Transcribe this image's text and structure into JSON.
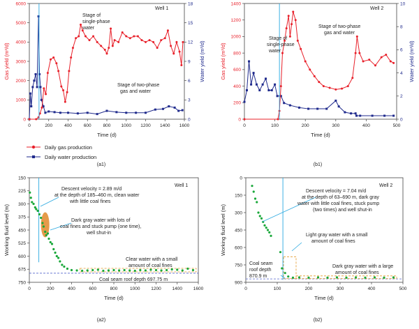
{
  "colors": {
    "gas": "#e8202a",
    "water": "#1f2a8c",
    "level": "#1aa83a",
    "annotation_line": "#29a8e0",
    "box": "#e39a2a",
    "roof_line": "#5566cc",
    "slug": "#e08a2a"
  },
  "legend": {
    "gas": "Daily gas production",
    "water": "Daily water production"
  },
  "chart_data": [
    {
      "id": "a1",
      "type": "line",
      "panel_label": "Well 1",
      "caption": "(a1)",
      "xlabel": "Time (d)",
      "ylabel_left": "Gas yield (m³/d)",
      "ylabel_right": "Water yield (m³/d)",
      "xlim": [
        0,
        1600
      ],
      "xticks": [
        0,
        200,
        400,
        600,
        800,
        1000,
        1200,
        1400,
        1600
      ],
      "ylim_left": [
        0,
        6000
      ],
      "yticks_left": [
        0,
        1000,
        2000,
        3000,
        4000,
        5000,
        6000
      ],
      "ylim_right": [
        0,
        18
      ],
      "yticks_right": [
        0,
        3,
        6,
        9,
        12,
        15,
        18
      ],
      "series": [
        {
          "name": "Daily gas production",
          "axis": "left",
          "points": [
            [
              0,
              0
            ],
            [
              70,
              0
            ],
            [
              95,
              100
            ],
            [
              110,
              300
            ],
            [
              130,
              600
            ],
            [
              150,
              1600
            ],
            [
              170,
              1300
            ],
            [
              190,
              2400
            ],
            [
              220,
              3100
            ],
            [
              250,
              3200
            ],
            [
              280,
              2900
            ],
            [
              300,
              2500
            ],
            [
              330,
              1700
            ],
            [
              350,
              1500
            ],
            [
              370,
              900
            ],
            [
              390,
              1400
            ],
            [
              410,
              2500
            ],
            [
              430,
              3200
            ],
            [
              450,
              3700
            ],
            [
              480,
              4200
            ],
            [
              510,
              4300
            ],
            [
              530,
              4900
            ],
            [
              550,
              4600
            ],
            [
              580,
              4300
            ],
            [
              620,
              4100
            ],
            [
              660,
              4300
            ],
            [
              700,
              4000
            ],
            [
              740,
              3800
            ],
            [
              780,
              3600
            ],
            [
              800,
              3400
            ],
            [
              820,
              3700
            ],
            [
              840,
              4700
            ],
            [
              860,
              3800
            ],
            [
              880,
              4100
            ],
            [
              920,
              4000
            ],
            [
              960,
              4500
            ],
            [
              1000,
              4300
            ],
            [
              1040,
              4200
            ],
            [
              1080,
              4300
            ],
            [
              1120,
              4300
            ],
            [
              1160,
              4100
            ],
            [
              1200,
              4000
            ],
            [
              1240,
              4100
            ],
            [
              1280,
              4000
            ],
            [
              1320,
              3700
            ],
            [
              1360,
              4100
            ],
            [
              1400,
              4200
            ],
            [
              1430,
              4600
            ],
            [
              1460,
              3800
            ],
            [
              1490,
              3400
            ],
            [
              1520,
              4000
            ],
            [
              1550,
              3500
            ],
            [
              1570,
              2800
            ],
            [
              1585,
              4000
            ]
          ]
        },
        {
          "name": "Daily water production",
          "axis": "right",
          "points": [
            [
              0,
              0
            ],
            [
              10,
              4
            ],
            [
              20,
              2
            ],
            [
              35,
              5
            ],
            [
              50,
              6
            ],
            [
              65,
              7
            ],
            [
              80,
              5
            ],
            [
              95,
              16
            ],
            [
              105,
              7
            ],
            [
              115,
              5
            ],
            [
              125,
              3
            ],
            [
              145,
              2
            ],
            [
              165,
              1
            ],
            [
              200,
              1.2
            ],
            [
              260,
              1.1
            ],
            [
              320,
              1
            ],
            [
              400,
              1
            ],
            [
              500,
              0.9
            ],
            [
              600,
              1
            ],
            [
              700,
              0.8
            ],
            [
              800,
              1.3
            ],
            [
              900,
              1.1
            ],
            [
              1000,
              1
            ],
            [
              1100,
              1
            ],
            [
              1200,
              1
            ],
            [
              1300,
              1.5
            ],
            [
              1380,
              1.6
            ],
            [
              1440,
              2
            ],
            [
              1500,
              1.8
            ],
            [
              1540,
              1.3
            ],
            [
              1580,
              1.4
            ]
          ]
        }
      ],
      "annotations": [
        "Stage of single-phase water",
        "Stage of two-phase gas and water"
      ]
    },
    {
      "id": "b1",
      "type": "line",
      "panel_label": "Well 2",
      "caption": "(b1)",
      "xlabel": "Time (d)",
      "ylabel_left": "Gas yield (m³/d)",
      "ylabel_right": "Water yield (m³/d)",
      "xlim": [
        0,
        500
      ],
      "xticks": [
        0,
        100,
        200,
        300,
        400,
        500
      ],
      "ylim_left": [
        0,
        1400
      ],
      "yticks_left": [
        0,
        200,
        400,
        600,
        800,
        1000,
        1200,
        1400
      ],
      "ylim_right": [
        0,
        10
      ],
      "yticks_right": [
        0,
        2,
        4,
        6,
        8,
        10
      ],
      "series": [
        {
          "name": "Daily gas production",
          "axis": "left",
          "points": [
            [
              0,
              0
            ],
            [
              110,
              0
            ],
            [
              115,
              100
            ],
            [
              120,
              400
            ],
            [
              125,
              800
            ],
            [
              132,
              950
            ],
            [
              138,
              1100
            ],
            [
              145,
              1250
            ],
            [
              150,
              1000
            ],
            [
              155,
              1150
            ],
            [
              160,
              1300
            ],
            [
              168,
              1200
            ],
            [
              175,
              950
            ],
            [
              185,
              850
            ],
            [
              200,
              700
            ],
            [
              215,
              600
            ],
            [
              230,
              520
            ],
            [
              245,
              450
            ],
            [
              260,
              400
            ],
            [
              280,
              380
            ],
            [
              300,
              360
            ],
            [
              320,
              370
            ],
            [
              340,
              400
            ],
            [
              355,
              500
            ],
            [
              365,
              800
            ],
            [
              370,
              1000
            ],
            [
              378,
              800
            ],
            [
              390,
              700
            ],
            [
              410,
              720
            ],
            [
              430,
              650
            ],
            [
              450,
              750
            ],
            [
              465,
              780
            ],
            [
              480,
              700
            ],
            [
              490,
              680
            ]
          ]
        },
        {
          "name": "Daily water production",
          "axis": "right",
          "points": [
            [
              0,
              1.5
            ],
            [
              8,
              2.5
            ],
            [
              15,
              5
            ],
            [
              22,
              3
            ],
            [
              30,
              4
            ],
            [
              40,
              3
            ],
            [
              50,
              2.5
            ],
            [
              60,
              3
            ],
            [
              70,
              3.5
            ],
            [
              80,
              2.5
            ],
            [
              90,
              2.5
            ],
            [
              100,
              3
            ],
            [
              108,
              2
            ],
            [
              120,
              2
            ],
            [
              130,
              1.4
            ],
            [
              150,
              1.2
            ],
            [
              180,
              1
            ],
            [
              210,
              0.9
            ],
            [
              240,
              0.9
            ],
            [
              270,
              0.9
            ],
            [
              300,
              1.6
            ],
            [
              310,
              1.1
            ],
            [
              330,
              0.6
            ],
            [
              350,
              0.5
            ],
            [
              365,
              0.5
            ],
            [
              368,
              0.3
            ],
            [
              380,
              0.3
            ],
            [
              420,
              0.3
            ],
            [
              460,
              0.3
            ],
            [
              490,
              0.3
            ]
          ]
        }
      ],
      "annotations": [
        "Stage of single-phase water",
        "Stage of two-phase gas and water"
      ]
    },
    {
      "id": "a2",
      "type": "scatter",
      "panel_label": "Well 1",
      "caption": "(a2)",
      "xlabel": "Time (d)",
      "ylabel": "Working fluid level (m)",
      "xlim": [
        0,
        1600
      ],
      "xticks": [
        0,
        200,
        400,
        600,
        800,
        1000,
        1200,
        1400,
        1600
      ],
      "ylim": [
        150,
        750
      ],
      "yinverted": true,
      "yticks": [
        150,
        225,
        300,
        375,
        450,
        525,
        600,
        675,
        750
      ],
      "points": [
        [
          5,
          235
        ],
        [
          15,
          265
        ],
        [
          25,
          290
        ],
        [
          40,
          300
        ],
        [
          55,
          320
        ],
        [
          65,
          330
        ],
        [
          80,
          340
        ],
        [
          95,
          360
        ],
        [
          110,
          380
        ],
        [
          125,
          410
        ],
        [
          135,
          430
        ],
        [
          150,
          460
        ],
        [
          160,
          480
        ],
        [
          175,
          470
        ],
        [
          185,
          500
        ],
        [
          200,
          520
        ],
        [
          215,
          530
        ],
        [
          230,
          560
        ],
        [
          245,
          580
        ],
        [
          260,
          600
        ],
        [
          275,
          610
        ],
        [
          290,
          630
        ],
        [
          310,
          650
        ],
        [
          330,
          660
        ],
        [
          360,
          672
        ],
        [
          400,
          680
        ],
        [
          450,
          682
        ],
        [
          500,
          684
        ],
        [
          550,
          682
        ],
        [
          600,
          680
        ],
        [
          650,
          678
        ],
        [
          700,
          684
        ],
        [
          750,
          682
        ],
        [
          800,
          680
        ],
        [
          850,
          682
        ],
        [
          900,
          680
        ],
        [
          950,
          682
        ],
        [
          1000,
          684
        ],
        [
          1050,
          680
        ],
        [
          1100,
          682
        ],
        [
          1150,
          678
        ],
        [
          1200,
          680
        ],
        [
          1250,
          682
        ],
        [
          1300,
          680
        ],
        [
          1350,
          676
        ],
        [
          1400,
          678
        ],
        [
          1450,
          682
        ],
        [
          1500,
          672
        ],
        [
          1550,
          680
        ]
      ],
      "roof_depth": 697.75,
      "annotations": [
        "Descent velocity = 2.89 m/d",
        "at the depth of 185–460 m, clean water",
        "with little coal fines",
        "Dark gray water with lots of",
        "coal fines and stuck pump (one time),",
        "well shut-in",
        "Clear water with a small",
        "amount of coal fines",
        "Coal seam roof depth 697.75 m"
      ]
    },
    {
      "id": "b2",
      "type": "scatter",
      "panel_label": "Well 2",
      "caption": "(b2)",
      "xlabel": "Time (d)",
      "ylabel": "Working fluid level (m)",
      "xlim": [
        0,
        500
      ],
      "xticks": [
        0,
        100,
        200,
        300,
        400,
        500
      ],
      "ylim": [
        0,
        900
      ],
      "yinverted": true,
      "yticks": [
        0,
        150,
        300,
        450,
        600,
        750,
        900
      ],
      "points": [
        [
          20,
          70
        ],
        [
          25,
          120
        ],
        [
          30,
          180
        ],
        [
          35,
          210
        ],
        [
          40,
          300
        ],
        [
          45,
          330
        ],
        [
          50,
          350
        ],
        [
          55,
          380
        ],
        [
          60,
          410
        ],
        [
          65,
          430
        ],
        [
          70,
          450
        ],
        [
          75,
          470
        ],
        [
          80,
          500
        ],
        [
          110,
          640
        ],
        [
          115,
          780
        ],
        [
          125,
          820
        ],
        [
          135,
          850
        ],
        [
          150,
          860
        ],
        [
          170,
          858
        ],
        [
          200,
          860
        ],
        [
          230,
          858
        ],
        [
          260,
          860
        ],
        [
          290,
          858
        ],
        [
          320,
          860
        ],
        [
          350,
          858
        ],
        [
          380,
          860
        ],
        [
          410,
          858
        ],
        [
          440,
          860
        ],
        [
          470,
          858
        ]
      ],
      "roof_depth": 870.9,
      "annotations": [
        "Descent velocity = 7.04 m/d",
        "at the depth of 63–690 m, dark gray",
        "water with little coal fines, stuck pump",
        "(two times) and well shut-in",
        "Light gray water with a small",
        "amount of coal fines",
        "Dark gray water with a large",
        "amount of coal fines",
        "Coal seam",
        "roof depth",
        "870.9 m"
      ]
    }
  ]
}
